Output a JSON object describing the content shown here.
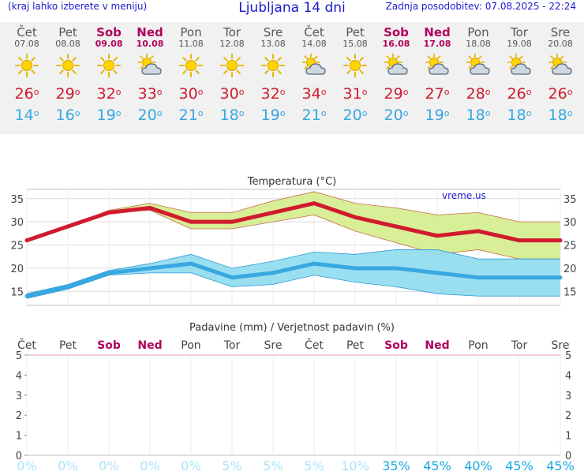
{
  "header": {
    "note": "(kraj lahko izberete v meniju)",
    "title": "Ljubljana 14 dni",
    "updated": "Zadnja posodobitev: 07.08.2025 - 22:24"
  },
  "colors": {
    "title_blue": "#1a1ad0",
    "weekday": "#555555",
    "weekend": "#b0005a",
    "tmax": "#d01a2e",
    "tmin": "#38a8e0",
    "max_band": "#d4ec8c",
    "min_band": "#8fdcee",
    "prob_low": "#a8e4f8",
    "prob_high": "#1aa8e0"
  },
  "days": [
    {
      "name": "Čet",
      "date": "07.08",
      "weekend": false,
      "icon": "sunny-icon",
      "tmax": "26",
      "tmin": "14"
    },
    {
      "name": "Pet",
      "date": "08.08",
      "weekend": false,
      "icon": "sunny-icon",
      "tmax": "29",
      "tmin": "16"
    },
    {
      "name": "Sob",
      "date": "09.08",
      "weekend": true,
      "icon": "sunny-icon",
      "tmax": "32",
      "tmin": "19"
    },
    {
      "name": "Ned",
      "date": "10.08",
      "weekend": true,
      "icon": "partly-cloudy-icon",
      "tmax": "33",
      "tmin": "20"
    },
    {
      "name": "Pon",
      "date": "11.08",
      "weekend": false,
      "icon": "sunny-icon",
      "tmax": "30",
      "tmin": "21"
    },
    {
      "name": "Tor",
      "date": "12.08",
      "weekend": false,
      "icon": "sunny-icon",
      "tmax": "30",
      "tmin": "18"
    },
    {
      "name": "Sre",
      "date": "13.08",
      "weekend": false,
      "icon": "sunny-icon",
      "tmax": "32",
      "tmin": "19"
    },
    {
      "name": "Čet",
      "date": "14.08",
      "weekend": false,
      "icon": "partly-cloudy-icon",
      "tmax": "34",
      "tmin": "21"
    },
    {
      "name": "Pet",
      "date": "15.08",
      "weekend": false,
      "icon": "sunny-icon",
      "tmax": "31",
      "tmin": "20"
    },
    {
      "name": "Sob",
      "date": "16.08",
      "weekend": true,
      "icon": "partly-cloudy-icon",
      "tmax": "29",
      "tmin": "20"
    },
    {
      "name": "Ned",
      "date": "17.08",
      "weekend": true,
      "icon": "partly-cloudy-icon",
      "tmax": "27",
      "tmin": "19"
    },
    {
      "name": "Pon",
      "date": "18.08",
      "weekend": false,
      "icon": "partly-cloudy-icon",
      "tmax": "28",
      "tmin": "18"
    },
    {
      "name": "Tor",
      "date": "19.08",
      "weekend": false,
      "icon": "partly-cloudy-icon",
      "tmax": "26",
      "tmin": "18"
    },
    {
      "name": "Sre",
      "date": "20.08",
      "weekend": false,
      "icon": "partly-cloudy-icon",
      "tmax": "26",
      "tmin": "18"
    }
  ],
  "chart_data": [
    {
      "type": "line",
      "title": "Temperatura (°C)",
      "watermark": "vreme.us",
      "ylim": [
        12,
        37
      ],
      "yticks": [
        15,
        20,
        25,
        30,
        35
      ],
      "grid": true,
      "series": [
        {
          "values": [
            26,
            29,
            32,
            33,
            30,
            30,
            32,
            34,
            31,
            29,
            27,
            28,
            26,
            26
          ],
          "band_low": [
            26,
            29,
            32,
            32.5,
            28.5,
            28.5,
            30,
            31.5,
            28,
            25.5,
            23,
            24,
            22,
            22
          ],
          "band_high": [
            26,
            29,
            32.5,
            34,
            32,
            32,
            34.5,
            36.5,
            34,
            33,
            31.5,
            32,
            30,
            30
          ]
        },
        {
          "values": [
            14,
            16,
            19,
            20,
            21,
            18,
            19,
            21,
            20,
            20,
            19,
            18,
            18,
            18
          ],
          "band_low": [
            13.5,
            15.5,
            18.5,
            19,
            19,
            16,
            16.5,
            18.5,
            17,
            16,
            14.5,
            14,
            14,
            14
          ],
          "band_high": [
            14.5,
            16.5,
            19.5,
            21,
            23,
            20,
            21.5,
            23.5,
            23,
            24,
            24,
            22,
            22,
            22
          ]
        }
      ]
    },
    {
      "type": "bar",
      "title": "Padavine (mm) / Verjetnost padavin (%)",
      "ylim": [
        0,
        5
      ],
      "yticks": [
        0,
        1,
        2,
        3,
        4,
        5
      ],
      "precipitation_mm": [
        0,
        0,
        0,
        0,
        0,
        0,
        0,
        0,
        0,
        0,
        0,
        0,
        0,
        0
      ],
      "probability_labels": [
        "0%",
        "0%",
        "0%",
        "0%",
        "0%",
        "5%",
        "5%",
        "5%",
        "10%",
        "35%",
        "45%",
        "40%",
        "45%",
        "45%"
      ],
      "probability": [
        0,
        0,
        0,
        0,
        0,
        5,
        5,
        5,
        10,
        35,
        45,
        40,
        45,
        45
      ]
    }
  ]
}
